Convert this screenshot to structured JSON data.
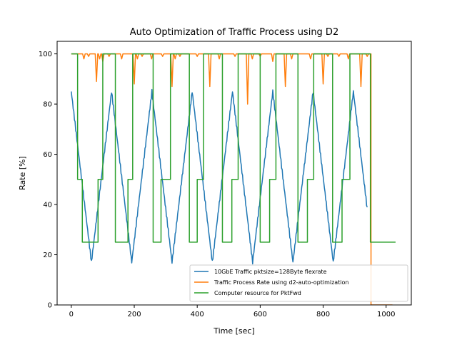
{
  "chart_data": {
    "type": "line",
    "title": "Auto Optimization of Traffic Process using D2",
    "xlabel": "Time [sec]",
    "ylabel": "Rate [%]",
    "xlim": [
      -45,
      1080
    ],
    "ylim": [
      0,
      105
    ],
    "xticks": [
      0,
      200,
      400,
      600,
      800,
      1000
    ],
    "yticks": [
      0,
      20,
      40,
      60,
      80,
      100
    ],
    "grid": false,
    "legend_position": "lower right",
    "series": [
      {
        "name": "10GbE Traffic pktsize=128Byte flexrate",
        "color": "#1f77b4",
        "generator": "triangle",
        "x_start": 0,
        "x_end": 940,
        "step": 2,
        "period": 128,
        "max": 85,
        "min": 17,
        "peaks_x": [
          0,
          110,
          235,
          360,
          470,
          595,
          720,
          830
        ],
        "troughs_x": [
          55,
          175,
          300,
          415,
          540,
          655,
          775,
          895
        ]
      },
      {
        "name": "Traffic Process Rate using d2-auto-optimization",
        "color": "#ff7f0e",
        "base_value": 100,
        "x_start": 0,
        "x_end": 952,
        "dips": [
          {
            "x": 40,
            "y": 98
          },
          {
            "x": 55,
            "y": 99
          },
          {
            "x": 80,
            "y": 89
          },
          {
            "x": 90,
            "y": 98
          },
          {
            "x": 100,
            "y": 97
          },
          {
            "x": 120,
            "y": 99
          },
          {
            "x": 160,
            "y": 98
          },
          {
            "x": 200,
            "y": 88
          },
          {
            "x": 210,
            "y": 98
          },
          {
            "x": 225,
            "y": 99
          },
          {
            "x": 255,
            "y": 98
          },
          {
            "x": 290,
            "y": 99
          },
          {
            "x": 320,
            "y": 87
          },
          {
            "x": 330,
            "y": 98
          },
          {
            "x": 345,
            "y": 99
          },
          {
            "x": 400,
            "y": 99
          },
          {
            "x": 440,
            "y": 87
          },
          {
            "x": 470,
            "y": 98
          },
          {
            "x": 520,
            "y": 99
          },
          {
            "x": 560,
            "y": 80
          },
          {
            "x": 575,
            "y": 98
          },
          {
            "x": 600,
            "y": 99
          },
          {
            "x": 640,
            "y": 97
          },
          {
            "x": 680,
            "y": 87
          },
          {
            "x": 700,
            "y": 98
          },
          {
            "x": 760,
            "y": 98
          },
          {
            "x": 800,
            "y": 88
          },
          {
            "x": 815,
            "y": 99
          },
          {
            "x": 850,
            "y": 99
          },
          {
            "x": 880,
            "y": 98
          },
          {
            "x": 920,
            "y": 87
          },
          {
            "x": 940,
            "y": 99
          }
        ],
        "tail": [
          [
            952,
            100
          ],
          [
            952,
            0
          ],
          [
            1020,
            0
          ]
        ]
      },
      {
        "name": "Computer resource for PktFwd",
        "color": "#2ca02c",
        "steps": [
          [
            0,
            100
          ],
          [
            20,
            50
          ],
          [
            35,
            25
          ],
          [
            75,
            25
          ],
          [
            85,
            50
          ],
          [
            100,
            100
          ],
          [
            140,
            25
          ],
          [
            180,
            50
          ],
          [
            195,
            100
          ],
          [
            260,
            25
          ],
          [
            285,
            50
          ],
          [
            315,
            100
          ],
          [
            375,
            25
          ],
          [
            400,
            50
          ],
          [
            420,
            100
          ],
          [
            480,
            25
          ],
          [
            510,
            50
          ],
          [
            530,
            100
          ],
          [
            600,
            25
          ],
          [
            630,
            50
          ],
          [
            650,
            100
          ],
          [
            720,
            25
          ],
          [
            750,
            50
          ],
          [
            770,
            100
          ],
          [
            830,
            25
          ],
          [
            860,
            50
          ],
          [
            885,
            100
          ],
          [
            950,
            25
          ]
        ],
        "x_end": 1030
      }
    ]
  }
}
